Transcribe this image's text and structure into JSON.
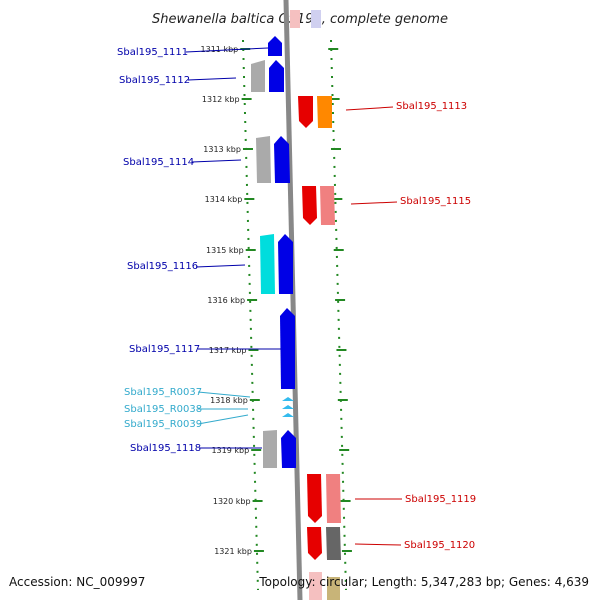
{
  "title_italic": "Shewanella baltica OS195",
  "title_rest": ", complete genome",
  "accession_text": "Accession: NC_009997",
  "topology_text": "Topology: circular; Length: 5,347,283 bp; Genes: 4,639",
  "colors": {
    "forward_strand": "#0000e6",
    "reverse_strand": "#e60000",
    "reverse_label": "#cc0000",
    "forward_label": "#0000aa",
    "rna_label": "#33aacc",
    "rna_feature": "#33bbee",
    "orange_feature": "#ff8800",
    "cyan_feature": "#00dddd",
    "gray_feature": "#aaaaaa",
    "pink_feature": "#f08080",
    "dark_gray_feature": "#666666",
    "olive_feature": "#c8b478",
    "axis_line": "#888888",
    "tick_green": "#228822"
  },
  "axis": {
    "unit": "kbp",
    "ticks": [
      1311,
      1312,
      1313,
      1314,
      1315,
      1316,
      1317,
      1318,
      1319,
      1320,
      1321
    ]
  },
  "labels": [
    {
      "text": "Sbal195_1111",
      "side": "left",
      "kind": "gene"
    },
    {
      "text": "Sbal195_1112",
      "side": "left",
      "kind": "gene"
    },
    {
      "text": "Sbal195_1113",
      "side": "right",
      "kind": "gene"
    },
    {
      "text": "Sbal195_1114",
      "side": "left",
      "kind": "gene"
    },
    {
      "text": "Sbal195_1115",
      "side": "right",
      "kind": "gene"
    },
    {
      "text": "Sbal195_1116",
      "side": "left",
      "kind": "gene"
    },
    {
      "text": "Sbal195_1117",
      "side": "left",
      "kind": "gene"
    },
    {
      "text": "Sbal195_R0037",
      "side": "left",
      "kind": "rna"
    },
    {
      "text": "Sbal195_R0038",
      "side": "left",
      "kind": "rna"
    },
    {
      "text": "Sbal195_R0039",
      "side": "left",
      "kind": "rna"
    },
    {
      "text": "Sbal195_1118",
      "side": "left",
      "kind": "gene"
    },
    {
      "text": "Sbal195_1119",
      "side": "right",
      "kind": "gene"
    },
    {
      "text": "Sbal195_1120",
      "side": "right",
      "kind": "gene"
    }
  ]
}
